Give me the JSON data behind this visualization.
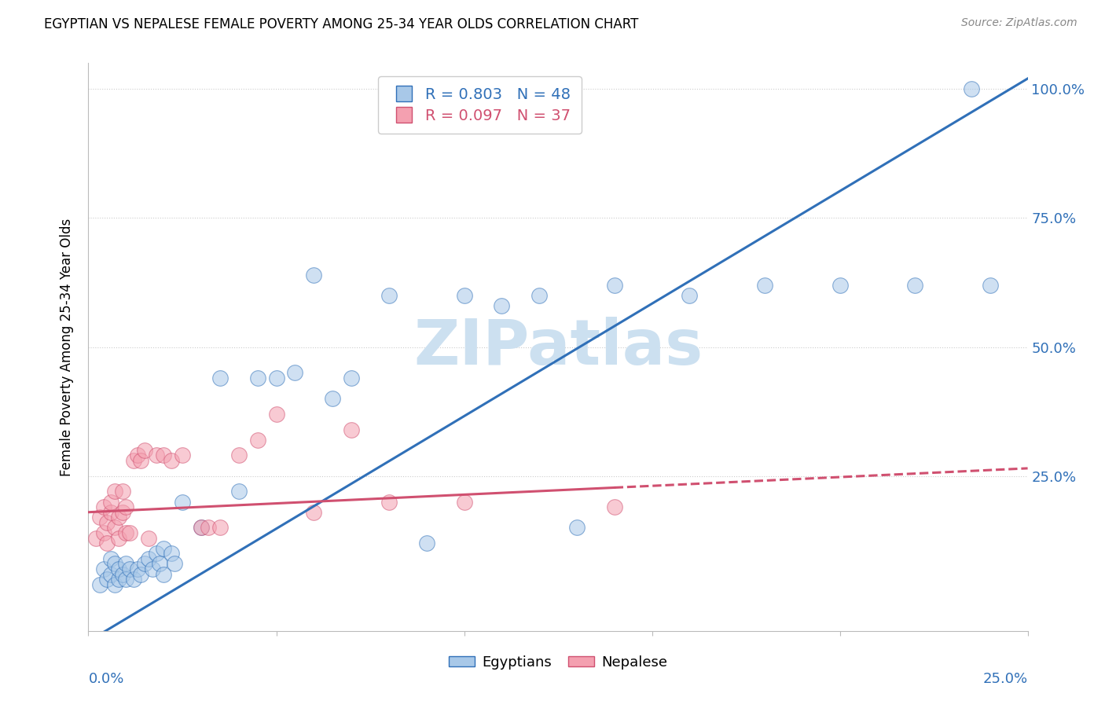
{
  "title": "EGYPTIAN VS NEPALESE FEMALE POVERTY AMONG 25-34 YEAR OLDS CORRELATION CHART",
  "source": "Source: ZipAtlas.com",
  "ylabel": "Female Poverty Among 25-34 Year Olds",
  "xmin": 0.0,
  "xmax": 25.0,
  "ymin": -5.0,
  "ymax": 105.0,
  "ytick_values": [
    0.0,
    25.0,
    50.0,
    75.0,
    100.0
  ],
  "ytick_labels": [
    "",
    "25.0%",
    "50.0%",
    "75.0%",
    "100.0%"
  ],
  "xtick_values": [
    0.0,
    5.0,
    10.0,
    15.0,
    20.0,
    25.0
  ],
  "egyptian_R": 0.803,
  "egyptian_N": 48,
  "nepalese_R": 0.097,
  "nepalese_N": 37,
  "egyptian_color": "#a8c8e8",
  "nepalese_color": "#f4a0b0",
  "trendline_egyptian_color": "#3070b8",
  "trendline_nepalese_color": "#d05070",
  "watermark_text": "ZIPatlas",
  "watermark_color": "#cce0f0",
  "eg_x": [
    0.3,
    0.4,
    0.5,
    0.6,
    0.6,
    0.7,
    0.7,
    0.8,
    0.8,
    0.9,
    1.0,
    1.0,
    1.1,
    1.2,
    1.3,
    1.4,
    1.5,
    1.6,
    1.7,
    1.8,
    1.9,
    2.0,
    2.0,
    2.2,
    2.3,
    2.5,
    3.0,
    3.5,
    4.0,
    4.5,
    5.0,
    5.5,
    6.0,
    6.5,
    7.0,
    8.0,
    9.0,
    10.0,
    11.0,
    12.0,
    13.0,
    14.0,
    16.0,
    18.0,
    20.0,
    22.0,
    23.5,
    24.0
  ],
  "eg_y": [
    4.0,
    7.0,
    5.0,
    6.0,
    9.0,
    4.0,
    8.0,
    5.0,
    7.0,
    6.0,
    5.0,
    8.0,
    7.0,
    5.0,
    7.0,
    6.0,
    8.0,
    9.0,
    7.0,
    10.0,
    8.0,
    11.0,
    6.0,
    10.0,
    8.0,
    20.0,
    15.0,
    44.0,
    22.0,
    44.0,
    44.0,
    45.0,
    64.0,
    40.0,
    44.0,
    60.0,
    12.0,
    60.0,
    58.0,
    60.0,
    15.0,
    62.0,
    60.0,
    62.0,
    62.0,
    62.0,
    100.0,
    62.0
  ],
  "np_x": [
    0.2,
    0.3,
    0.4,
    0.4,
    0.5,
    0.5,
    0.6,
    0.6,
    0.7,
    0.7,
    0.8,
    0.8,
    0.9,
    0.9,
    1.0,
    1.0,
    1.1,
    1.2,
    1.3,
    1.4,
    1.5,
    1.6,
    1.8,
    2.0,
    2.2,
    2.5,
    3.0,
    3.2,
    3.5,
    4.0,
    4.5,
    5.0,
    6.0,
    7.0,
    8.0,
    10.0,
    14.0
  ],
  "np_y": [
    13.0,
    17.0,
    14.0,
    19.0,
    12.0,
    16.0,
    18.0,
    20.0,
    15.0,
    22.0,
    13.0,
    17.0,
    18.0,
    22.0,
    14.0,
    19.0,
    14.0,
    28.0,
    29.0,
    28.0,
    30.0,
    13.0,
    29.0,
    29.0,
    28.0,
    29.0,
    15.0,
    15.0,
    15.0,
    29.0,
    32.0,
    37.0,
    18.0,
    34.0,
    20.0,
    20.0,
    19.0
  ],
  "eg_trendline_x0": 0.0,
  "eg_trendline_y0": -7.0,
  "eg_trendline_x1": 25.0,
  "eg_trendline_y1": 102.0,
  "np_trendline_x0": 0.0,
  "np_trendline_y0": 18.0,
  "np_trendline_x1": 25.0,
  "np_trendline_y1": 26.5,
  "np_solid_end_x": 14.0
}
